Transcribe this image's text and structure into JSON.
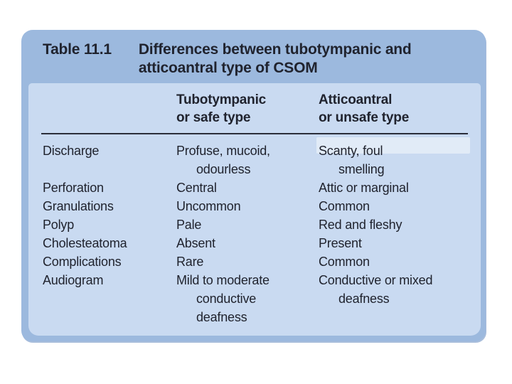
{
  "colors": {
    "header-bg": "#9cb9de",
    "body-bg": "#c9daf1",
    "text": "#20232e",
    "rule": "#2b2e3a",
    "page-bg": "#ffffff"
  },
  "caption": {
    "table_label": "Table 11.1",
    "title": "Differences between tubotympanic and atticoantral type of CSOM"
  },
  "columns": {
    "feature": "",
    "safe": {
      "line1": "Tubotympanic",
      "line2": "or safe type"
    },
    "unsafe": {
      "line1": "Atticoantral",
      "line2": "or unsafe type"
    }
  },
  "rows": [
    {
      "feature": "Discharge",
      "safe": [
        "Profuse, mucoid,",
        "odourless"
      ],
      "unsafe": [
        "Scanty, foul",
        "smelling"
      ]
    },
    {
      "feature": "Perforation",
      "safe": [
        "Central"
      ],
      "unsafe": [
        "Attic or marginal"
      ]
    },
    {
      "feature": "Granulations",
      "safe": [
        "Uncommon"
      ],
      "unsafe": [
        "Common"
      ]
    },
    {
      "feature": "Polyp",
      "safe": [
        "Pale"
      ],
      "unsafe": [
        "Red and fleshy"
      ]
    },
    {
      "feature": "Cholesteatoma",
      "safe": [
        "Absent"
      ],
      "unsafe": [
        "Present"
      ]
    },
    {
      "feature": "Complications",
      "safe": [
        "Rare"
      ],
      "unsafe": [
        "Common"
      ]
    },
    {
      "feature": "Audiogram",
      "safe": [
        "Mild to moderate",
        "conductive",
        "deafness"
      ],
      "unsafe": [
        "Conductive or mixed",
        "deafness"
      ]
    }
  ]
}
